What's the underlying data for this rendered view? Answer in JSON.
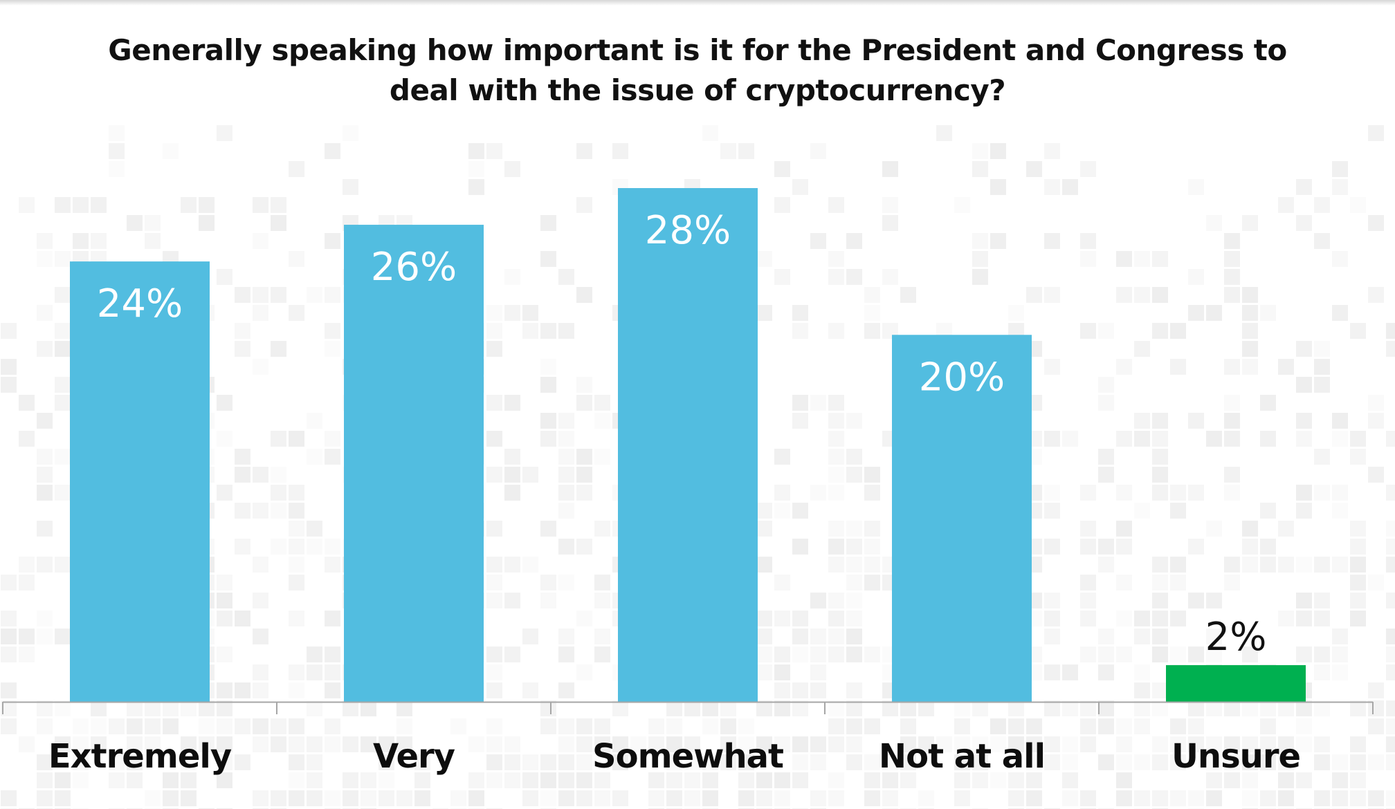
{
  "chart_data": {
    "type": "bar",
    "title": "Generally speaking how important is it for the President and Congress to deal with the issue of cryptocurrency?",
    "categories": [
      "Extremely",
      "Very",
      "Somewhat",
      "Not at all",
      "Unsure"
    ],
    "values": [
      24,
      26,
      28,
      20,
      2
    ],
    "value_labels": [
      "24%",
      "26%",
      "28%",
      "20%",
      "2%"
    ],
    "colors": [
      "#52bde0",
      "#52bde0",
      "#52bde0",
      "#52bde0",
      "#00b050"
    ],
    "ylim": [
      0,
      28
    ],
    "grid": false,
    "legend": "none"
  },
  "colors": {
    "bar_value_text_inside": "#ffffff",
    "bar_value_text_outside": "#111111",
    "axis_line": "#a6a6a6"
  }
}
